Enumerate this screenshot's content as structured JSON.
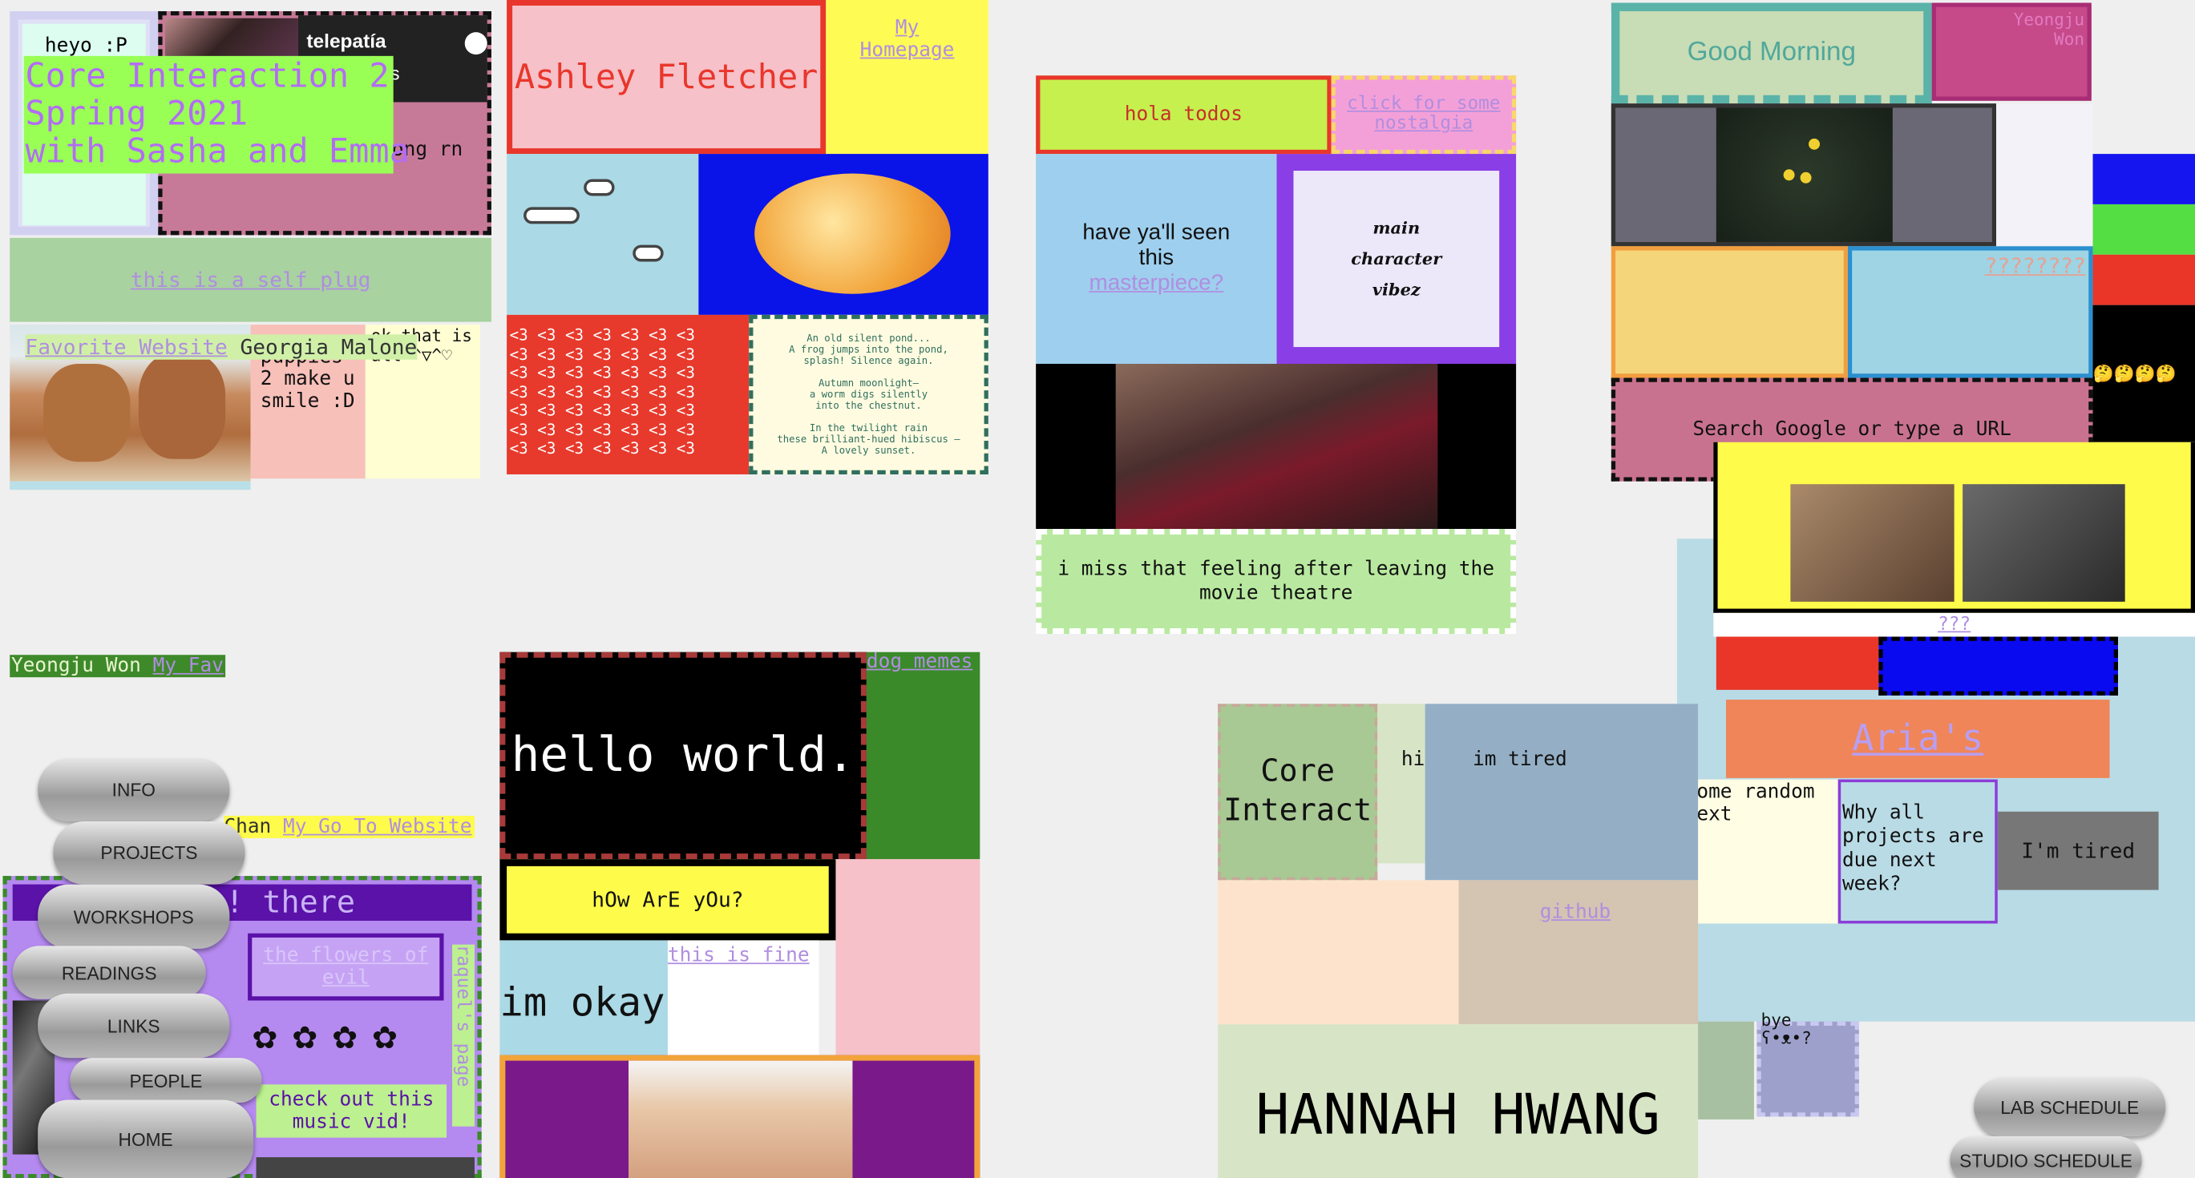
{
  "tiles": {
    "heyo": "heyo :P",
    "course_title": [
      "Core Interaction 2",
      "Spring 2021",
      "with Sasha and Emma"
    ],
    "spotify_title": "telepatía",
    "spotify_fragment": "s",
    "song_fragment": "ong rn",
    "self_plug": "this is a self plug",
    "favorite_website": "Favorite Website",
    "georgia": "Georgia Malone",
    "puppies_text": "puppies\n2 make u\nsmile :D",
    "ok_that_is": "ok that is\nall ^▽^♡",
    "ashley": "Ashley Fletcher",
    "my_homepage": "My Homepage",
    "hearts_line": "<3 <3 <3 <3 <3 <3 <3",
    "haiku": "An old silent pond...\nA frog jumps into the pond,\nsplash! Silence again.\n\nAutumn moonlight—\na worm digs silently\ninto the chestnut.\n\nIn the twilight rain\nthese brilliant-hued hibiscus —\nA lovely sunset.",
    "hola": "hola todos",
    "nostalgia": "click for some nostalgia",
    "seen_this": "have ya'll seen this",
    "masterpiece": "masterpiece?",
    "main_character": "main\ncharacter\nvibez",
    "theatre": "i miss that feeling after leaving the movie theatre",
    "good_morning": "Good Morning",
    "yeongju_corner": "Yeongju Won",
    "question_marks": "????????",
    "search_google": "Search Google or type a URL",
    "emoji_row": "🤔🤔🤔🤔",
    "three_q": "???",
    "aria": "Aria's",
    "some_random": "ome random\next",
    "why_all": "Why all projects are due next week?",
    "im_tired_1": "im tired",
    "hi": "hi",
    "im_tired_2": "I'm tired",
    "core_interact": "Core Interact",
    "github": "github",
    "bye": "bye\nʕ•ᴥ•?",
    "hannah": "HANNAH HWANG",
    "yeongju_won": "Yeongju Won",
    "my_fav": "My Fav",
    "chan": "Chan",
    "my_go_to": "My Go To Website",
    "hi_there": "! there",
    "flowers_of_evil": "the flowers of evil",
    "flowers": "✿ ✿ ✿ ✿",
    "check_out": "check out this music vid!",
    "raquels_page": "raquel's page",
    "hello_world": "hello world.",
    "dog_memes": "dog memes",
    "how_are_you": "hOw ArE yOu?",
    "this_is_fine": "this is fine",
    "im_okay": "im okay"
  },
  "nav": {
    "info": "INFO",
    "projects": "PROJECTS",
    "workshops": "WORKSHOPS",
    "readings": "READINGS",
    "links": "LINKS",
    "people": "PEOPLE",
    "home": "HOME",
    "lab_schedule": "LAB SCHEDULE",
    "studio_schedule": "STUDIO SCHEDULE"
  },
  "colors": {
    "background": "#efefef",
    "lime": "#99ff55",
    "link": "#b08ee0"
  }
}
